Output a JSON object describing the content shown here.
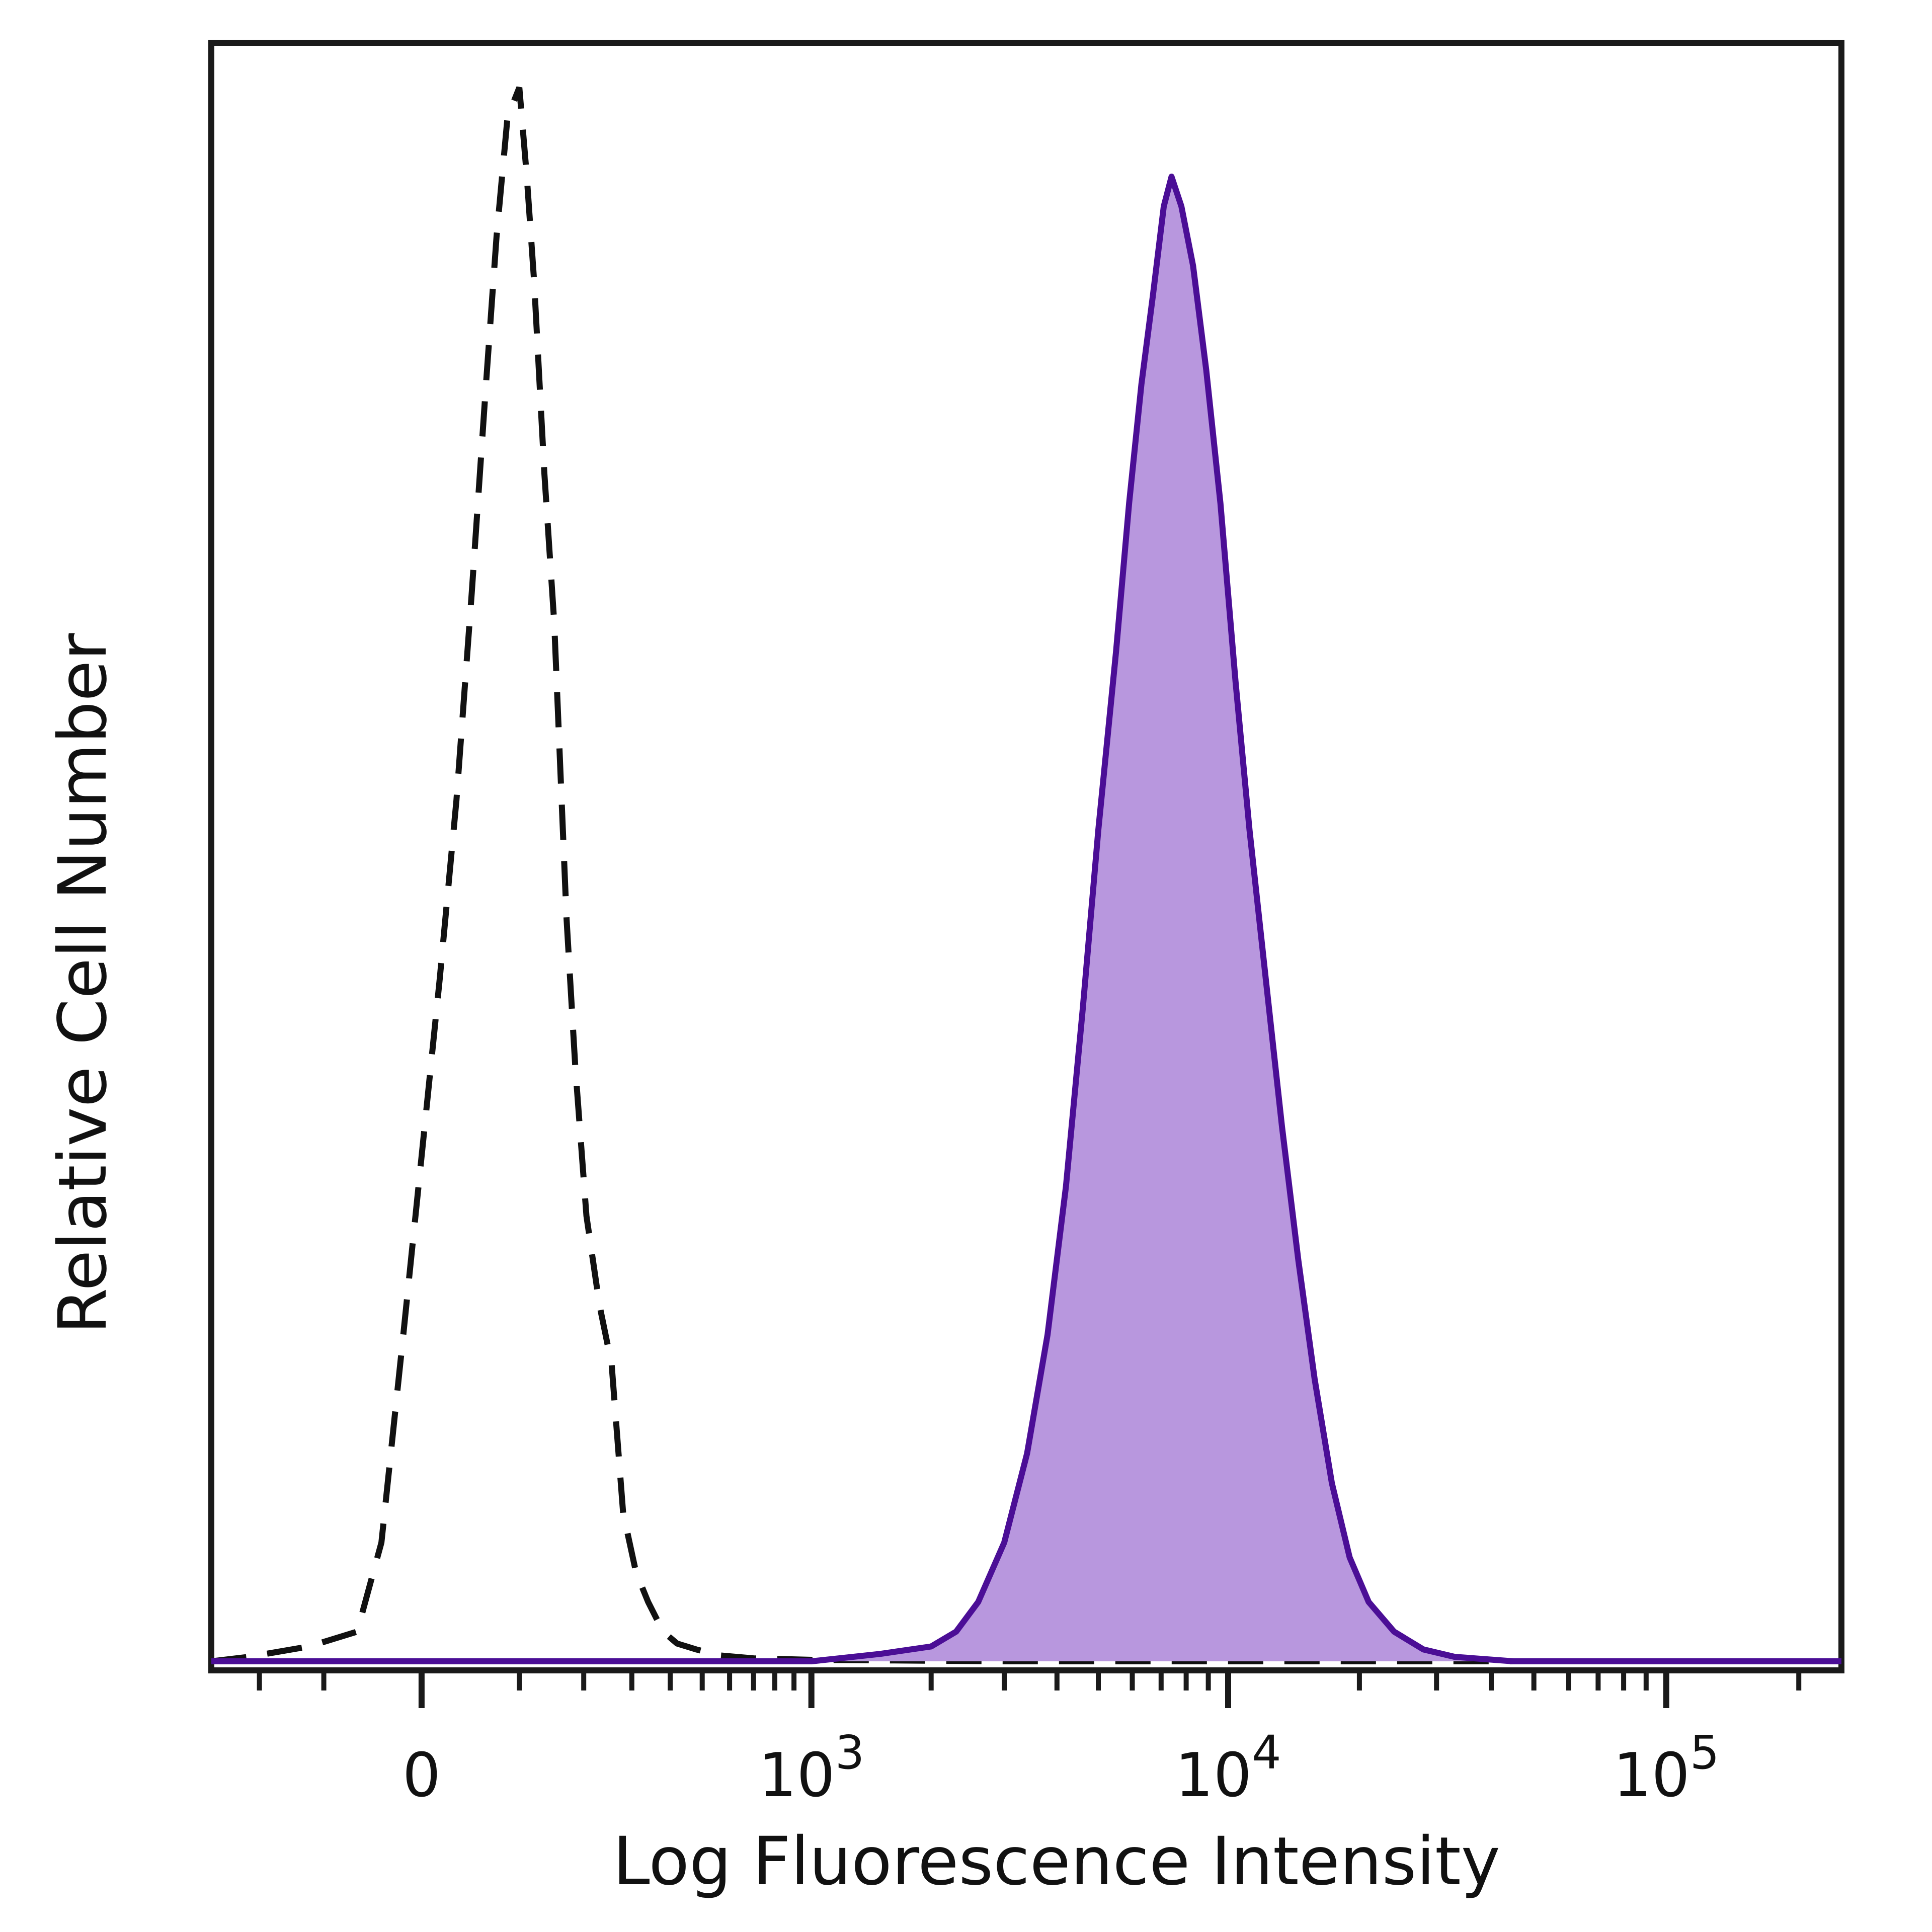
{
  "chart_data": {
    "type": "area",
    "xlabel": "Log Fluorescence Intensity",
    "ylabel": "Relative Cell Number",
    "x_scale": "biexponential",
    "x_ticks": [
      {
        "value": 0,
        "label": "0",
        "base": "",
        "exp": ""
      },
      {
        "value": 1000,
        "label": "",
        "base": "10",
        "exp": "3"
      },
      {
        "value": 10000,
        "label": "",
        "base": "10",
        "exp": "4"
      },
      {
        "value": 100000,
        "label": "",
        "base": "10",
        "exp": "5"
      }
    ],
    "y_ticks": [],
    "xlim": [
      -300,
      250000
    ],
    "ylim": [
      0,
      1.08
    ],
    "grid": false,
    "legend": "none",
    "series": [
      {
        "style": "dashed",
        "color": "#111111",
        "points": [
          [
            -300,
            0
          ],
          [
            -220,
            0.003
          ],
          [
            -120,
            0.01
          ],
          [
            -60,
            0.02
          ],
          [
            -35,
            0.08
          ],
          [
            -15,
            0.22
          ],
          [
            0,
            0.34
          ],
          [
            15,
            0.46
          ],
          [
            30,
            0.58
          ],
          [
            45,
            0.72
          ],
          [
            60,
            0.86
          ],
          [
            72,
            0.96
          ],
          [
            85,
            1.04
          ],
          [
            100,
            1.06
          ],
          [
            110,
            1.0
          ],
          [
            120,
            0.93
          ],
          [
            135,
            0.8
          ],
          [
            150,
            0.7
          ],
          [
            170,
            0.5
          ],
          [
            185,
            0.4
          ],
          [
            205,
            0.3
          ],
          [
            230,
            0.24
          ],
          [
            255,
            0.2
          ],
          [
            280,
            0.1
          ],
          [
            310,
            0.06
          ],
          [
            340,
            0.04
          ],
          [
            380,
            0.02
          ],
          [
            420,
            0.012
          ],
          [
            480,
            0.008
          ],
          [
            560,
            0.004
          ],
          [
            700,
            0.002
          ],
          [
            1000,
            0.001
          ],
          [
            3000,
            0
          ],
          [
            250000,
            0
          ]
        ]
      },
      {
        "style": "filled",
        "color": "#4b0e96",
        "fill": "#b897de",
        "points": [
          [
            -300,
            0
          ],
          [
            1000,
            0
          ],
          [
            1500,
            0.005
          ],
          [
            2000,
            0.01
          ],
          [
            2300,
            0.02
          ],
          [
            2600,
            0.04
          ],
          [
            3000,
            0.08
          ],
          [
            3400,
            0.14
          ],
          [
            3800,
            0.22
          ],
          [
            4200,
            0.32
          ],
          [
            4600,
            0.44
          ],
          [
            5000,
            0.56
          ],
          [
            5500,
            0.68
          ],
          [
            5900,
            0.78
          ],
          [
            6300,
            0.86
          ],
          [
            6700,
            0.92
          ],
          [
            7100,
            0.98
          ],
          [
            7400,
            1.0
          ],
          [
            7800,
            0.98
          ],
          [
            8300,
            0.94
          ],
          [
            8900,
            0.87
          ],
          [
            9600,
            0.78
          ],
          [
            10400,
            0.66
          ],
          [
            11200,
            0.56
          ],
          [
            12200,
            0.46
          ],
          [
            13300,
            0.36
          ],
          [
            14500,
            0.27
          ],
          [
            15800,
            0.19
          ],
          [
            17300,
            0.12
          ],
          [
            19000,
            0.07
          ],
          [
            21000,
            0.04
          ],
          [
            24000,
            0.02
          ],
          [
            28000,
            0.008
          ],
          [
            33000,
            0.003
          ],
          [
            45000,
            0
          ],
          [
            250000,
            0
          ]
        ]
      }
    ]
  }
}
